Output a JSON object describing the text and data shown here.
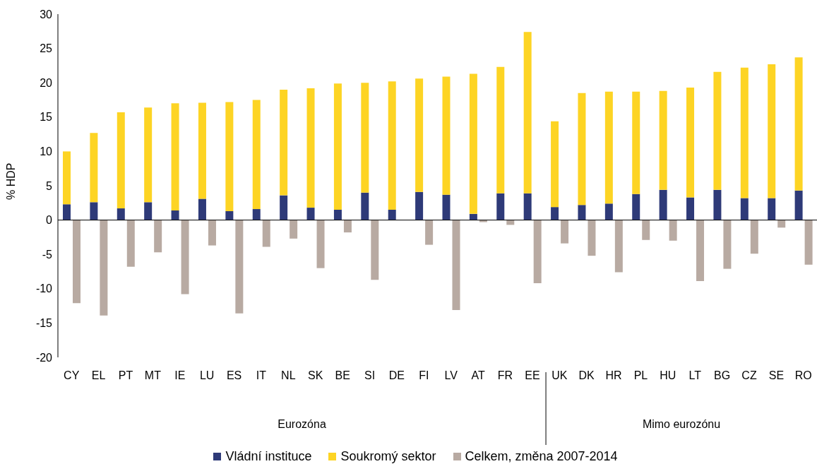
{
  "chart_data": {
    "type": "bar",
    "ylabel": "% HDP",
    "stacked": true,
    "categories": [
      "CY",
      "EL",
      "PT",
      "MT",
      "IE",
      "LU",
      "ES",
      "IT",
      "NL",
      "SK",
      "BE",
      "SI",
      "DE",
      "FI",
      "LV",
      "AT",
      "FR",
      "EE",
      "UK",
      "DK",
      "HR",
      "PL",
      "HU",
      "LT",
      "BG",
      "CZ",
      "SE",
      "RO"
    ],
    "series": [
      {
        "name": "Vládní instituce",
        "color": "#2e3a78",
        "values": [
          2.3,
          2.6,
          1.7,
          2.6,
          1.4,
          3.1,
          1.3,
          1.6,
          3.6,
          1.8,
          1.5,
          4.0,
          1.5,
          4.1,
          3.7,
          0.9,
          3.9,
          3.9,
          1.9,
          2.2,
          2.4,
          3.8,
          4.4,
          3.3,
          4.4,
          3.2,
          3.2,
          4.3
        ]
      },
      {
        "name": "Soukromý sektor",
        "color": "#fdd424",
        "values": [
          7.7,
          10.1,
          14.0,
          13.8,
          15.6,
          14.0,
          15.9,
          15.9,
          15.4,
          17.4,
          18.4,
          16.0,
          18.7,
          16.5,
          17.2,
          20.4,
          18.4,
          23.5,
          12.5,
          16.3,
          16.3,
          14.9,
          14.4,
          16.0,
          17.2,
          19.0,
          19.5,
          19.4
        ]
      },
      {
        "name": "Celkem, změna 2007-2014",
        "color": "#b8aaa2",
        "type": "bar",
        "values": [
          -12.1,
          -13.9,
          -6.8,
          -4.7,
          -10.8,
          -3.7,
          -13.6,
          -3.9,
          -2.7,
          -7.0,
          -1.8,
          -8.7,
          null,
          -3.6,
          -13.1,
          -0.3,
          -0.7,
          -9.2,
          -3.4,
          -5.2,
          -7.6,
          -2.9,
          -3.0,
          -8.9,
          -7.1,
          -4.9,
          -1.1,
          -6.5
        ]
      }
    ],
    "ylim": [
      -20,
      30
    ],
    "yticks": [
      -20,
      -15,
      -10,
      -5,
      0,
      5,
      10,
      15,
      20,
      25,
      30
    ],
    "legend": "bottom",
    "annotations": [
      "Eurozóna",
      "Mimo eurozónu"
    ]
  }
}
